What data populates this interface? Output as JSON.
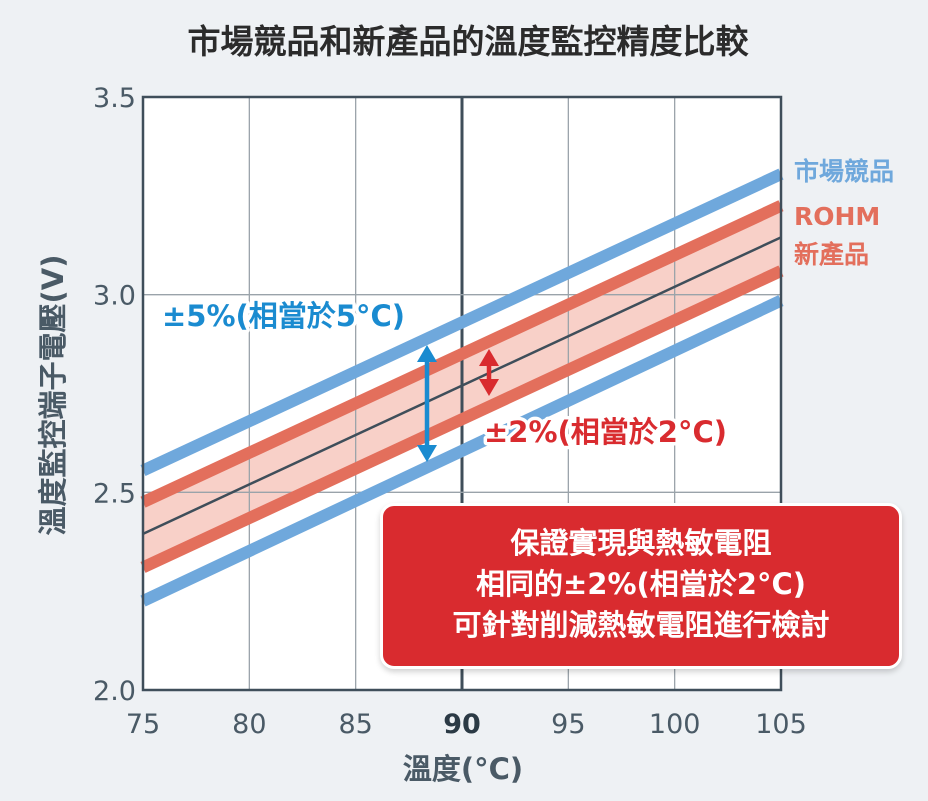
{
  "chart_data": {
    "type": "line",
    "title": "市場競品和新產品的溫度監控精度比較",
    "xlabel": "溫度(°C)",
    "ylabel": "溫度監控端子電壓(V)",
    "xlim": [
      75,
      105
    ],
    "ylim": [
      2.0,
      3.5
    ],
    "x_ticks": [
      "75",
      "80",
      "85",
      "90",
      "95",
      "100",
      "105"
    ],
    "y_ticks": [
      "2.0",
      "2.5",
      "3.0",
      "3.5"
    ],
    "highlight_x": 90,
    "grid": true,
    "series": [
      {
        "name": "市場競品",
        "role": "upper",
        "color": "#6fa8dc",
        "x": [
          75,
          105
        ],
        "y": [
          2.555,
          3.305
        ]
      },
      {
        "name": "市場競品",
        "role": "lower",
        "color": "#6fa8dc",
        "x": [
          75,
          105
        ],
        "y": [
          2.225,
          2.985
        ]
      },
      {
        "name": "ROHM 新產品",
        "role": "upper",
        "color": "#e36f5c",
        "x": [
          75,
          105
        ],
        "y": [
          2.475,
          3.225
        ]
      },
      {
        "name": "ROHM 新產品",
        "role": "lower",
        "color": "#e36f5c",
        "x": [
          75,
          105
        ],
        "y": [
          2.31,
          3.06
        ]
      },
      {
        "name": "",
        "role": "center",
        "color": "#3f4e5a",
        "x": [
          75,
          105
        ],
        "y": [
          2.395,
          3.145
        ]
      }
    ],
    "legend": {
      "competitor": "市場競品",
      "rohm_line1": "ROHM",
      "rohm_line2": "新產品"
    },
    "annotations": {
      "competitor_tolerance": "±5%(相當於5°C)",
      "rohm_tolerance": "±2%(相當於2°C)",
      "callout": [
        "保證實現與熱敏電阻",
        "相同的±2%(相當於2°C)",
        "可針對削減熱敏電阻進行檢討"
      ]
    },
    "colors": {
      "competitor": "#6fa8dc",
      "rohm": "#e36f5c",
      "rohm_band": "#f8d0c8",
      "center": "#3f4e5a",
      "blue_text": "#1a8bd0",
      "red_text": "#d92b2f",
      "axis_text": "#4a5a66"
    }
  }
}
